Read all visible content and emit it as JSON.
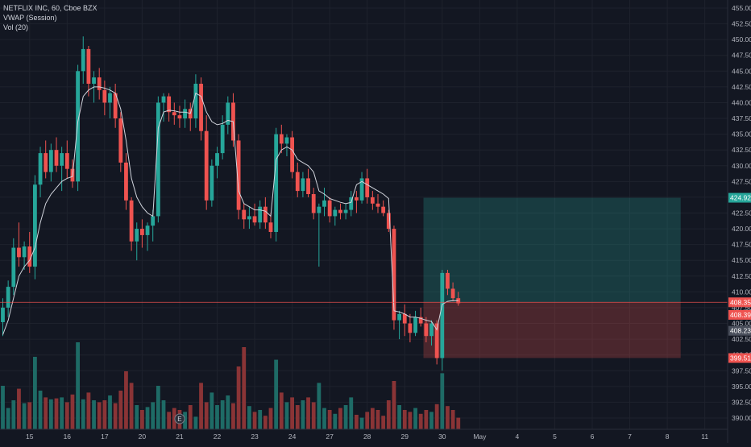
{
  "symbol": {
    "title": "NETFLIX INC, 60, Cboe BZX",
    "indicator_vwap": "VWAP (Session)",
    "indicator_vol": "Vol (20)"
  },
  "colors": {
    "background": "#131722",
    "grid": "#1e222d",
    "up": "#26a69a",
    "down": "#ef5350",
    "vol_up": "#1e6b66",
    "vol_down": "#8a3436",
    "vwap": "#d1d4dc",
    "target_zone": "rgba(38,166,154,0.25)",
    "stop_zone": "rgba(239,83,80,0.25)",
    "axis_text": "#b2b5be"
  },
  "earnings_marker": "E",
  "price_labels": {
    "target": "424.92",
    "entry": "408.35",
    "last_red": "408.39",
    "current": "408.23",
    "stop": "399.51"
  },
  "chart_data": {
    "type": "candlestick",
    "title": "NETFLIX INC, 60, Cboe BZX",
    "y_ticks": [
      "455.00",
      "452.50",
      "450.00",
      "447.50",
      "445.00",
      "442.50",
      "440.00",
      "437.50",
      "435.00",
      "432.50",
      "430.00",
      "427.50",
      "425.00",
      "422.50",
      "420.00",
      "417.50",
      "415.00",
      "412.50",
      "410.00",
      "407.50",
      "405.00",
      "402.50",
      "400.00",
      "397.50",
      "395.00",
      "392.50",
      "390.00"
    ],
    "ylim": [
      388.5,
      456.0
    ],
    "x_tick_labels": [
      {
        "label": "15",
        "slot": 5
      },
      {
        "label": "16",
        "slot": 12
      },
      {
        "label": "17",
        "slot": 19
      },
      {
        "label": "20",
        "slot": 26
      },
      {
        "label": "21",
        "slot": 33
      },
      {
        "label": "22",
        "slot": 40
      },
      {
        "label": "23",
        "slot": 47
      },
      {
        "label": "24",
        "slot": 54
      },
      {
        "label": "27",
        "slot": 61
      },
      {
        "label": "28",
        "slot": 68
      },
      {
        "label": "29",
        "slot": 75
      },
      {
        "label": "30",
        "slot": 82
      },
      {
        "label": "May",
        "slot": 89
      },
      {
        "label": "4",
        "slot": 96
      },
      {
        "label": "5",
        "slot": 103
      },
      {
        "label": "6",
        "slot": 110
      },
      {
        "label": "7",
        "slot": 117
      },
      {
        "label": "8",
        "slot": 124
      },
      {
        "label": "11",
        "slot": 131
      }
    ],
    "candles": [
      [
        405.2,
        409.0,
        403.0,
        407.5
      ],
      [
        407.5,
        411.8,
        406.0,
        410.8
      ],
      [
        410.8,
        418.5,
        409.5,
        417.0
      ],
      [
        417.0,
        421.0,
        414.0,
        415.5
      ],
      [
        415.5,
        418.0,
        413.5,
        417.2
      ],
      [
        417.2,
        419.5,
        413.0,
        414.0
      ],
      [
        414.0,
        428.5,
        412.0,
        427.0
      ],
      [
        427.0,
        433.0,
        425.0,
        432.0
      ],
      [
        432.0,
        434.0,
        428.0,
        429.0
      ],
      [
        429.0,
        433.5,
        427.5,
        432.5
      ],
      [
        432.5,
        434.5,
        429.0,
        430.0
      ],
      [
        430.0,
        433.0,
        426.0,
        432.0
      ],
      [
        432.0,
        434.0,
        428.0,
        429.5
      ],
      [
        429.5,
        431.0,
        426.5,
        427.5
      ],
      [
        427.5,
        446.0,
        426.0,
        445.0
      ],
      [
        445.0,
        450.5,
        443.0,
        448.5
      ],
      [
        448.5,
        449.0,
        441.0,
        443.0
      ],
      [
        443.0,
        445.0,
        440.0,
        444.0
      ],
      [
        444.0,
        445.5,
        440.5,
        442.0
      ],
      [
        442.0,
        443.5,
        438.0,
        440.0
      ],
      [
        440.0,
        442.5,
        437.5,
        441.5
      ],
      [
        441.5,
        443.0,
        436.0,
        437.5
      ],
      [
        437.5,
        438.5,
        429.0,
        430.5
      ],
      [
        430.5,
        432.0,
        423.0,
        424.5
      ],
      [
        424.5,
        425.0,
        416.5,
        418.0
      ],
      [
        418.0,
        421.0,
        415.0,
        420.0
      ],
      [
        420.0,
        421.5,
        417.0,
        419.0
      ],
      [
        419.0,
        421.0,
        416.5,
        420.5
      ],
      [
        420.5,
        423.0,
        418.0,
        422.0
      ],
      [
        422.0,
        441.0,
        421.0,
        440.0
      ],
      [
        440.0,
        441.5,
        437.0,
        441.0
      ],
      [
        441.0,
        441.5,
        437.0,
        438.5
      ],
      [
        438.5,
        440.0,
        436.5,
        438.0
      ],
      [
        438.0,
        439.5,
        436.0,
        437.5
      ],
      [
        437.5,
        440.5,
        436.0,
        439.0
      ],
      [
        439.0,
        440.0,
        435.5,
        437.5
      ],
      [
        437.5,
        444.5,
        436.0,
        443.0
      ],
      [
        443.0,
        444.0,
        434.0,
        435.5
      ],
      [
        435.5,
        438.0,
        423.0,
        424.5
      ],
      [
        424.5,
        431.0,
        423.5,
        430.0
      ],
      [
        430.0,
        433.0,
        428.0,
        432.0
      ],
      [
        432.0,
        438.0,
        431.0,
        436.5
      ],
      [
        436.5,
        441.0,
        435.0,
        440.0
      ],
      [
        440.0,
        441.5,
        433.0,
        434.0
      ],
      [
        434.0,
        435.0,
        421.5,
        423.0
      ],
      [
        423.0,
        424.0,
        420.0,
        421.5
      ],
      [
        421.5,
        423.5,
        420.0,
        422.0
      ],
      [
        422.0,
        424.0,
        420.5,
        421.0
      ],
      [
        421.0,
        424.5,
        420.0,
        423.5
      ],
      [
        423.5,
        425.0,
        420.0,
        421.0
      ],
      [
        421.0,
        422.5,
        418.5,
        419.5
      ],
      [
        419.5,
        436.0,
        418.0,
        435.0
      ],
      [
        435.0,
        436.5,
        432.0,
        433.5
      ],
      [
        433.5,
        435.0,
        431.5,
        434.5
      ],
      [
        434.5,
        435.5,
        428.0,
        429.0
      ],
      [
        429.0,
        430.5,
        425.0,
        426.0
      ],
      [
        426.0,
        429.0,
        425.0,
        428.0
      ],
      [
        428.0,
        429.5,
        425.0,
        425.5
      ],
      [
        425.5,
        426.5,
        421.5,
        422.5
      ],
      [
        422.5,
        424.0,
        414.0,
        423.5
      ],
      [
        423.5,
        426.5,
        422.0,
        424.5
      ],
      [
        424.5,
        425.0,
        421.0,
        422.0
      ],
      [
        422.0,
        423.5,
        420.5,
        423.0
      ],
      [
        423.0,
        424.0,
        421.5,
        422.5
      ],
      [
        422.5,
        424.0,
        421.5,
        423.0
      ],
      [
        423.0,
        426.0,
        422.0,
        425.0
      ],
      [
        425.0,
        426.0,
        422.5,
        424.5
      ],
      [
        424.5,
        429.0,
        424.0,
        428.0
      ],
      [
        428.0,
        429.5,
        424.0,
        425.0
      ],
      [
        425.0,
        426.0,
        423.0,
        424.0
      ],
      [
        424.0,
        425.5,
        422.5,
        423.5
      ],
      [
        423.5,
        424.5,
        422.0,
        422.5
      ],
      [
        422.5,
        423.0,
        419.5,
        420.0
      ],
      [
        420.0,
        420.5,
        404.0,
        405.5
      ],
      [
        405.5,
        407.0,
        402.5,
        406.5
      ],
      [
        406.5,
        408.0,
        403.0,
        405.0
      ],
      [
        405.0,
        406.5,
        402.0,
        403.5
      ],
      [
        403.5,
        407.0,
        403.0,
        406.0
      ],
      [
        406.0,
        407.5,
        404.5,
        405.0
      ],
      [
        405.0,
        406.0,
        402.0,
        403.0
      ],
      [
        403.0,
        405.5,
        401.5,
        405.0
      ],
      [
        405.0,
        405.5,
        398.5,
        399.5
      ],
      [
        399.5,
        413.5,
        397.5,
        413.0
      ],
      [
        413.0,
        413.5,
        409.5,
        410.5
      ],
      [
        410.5,
        411.5,
        408.5,
        409.0
      ],
      [
        409.0,
        410.0,
        407.8,
        408.2
      ]
    ],
    "vwap": [
      403.2,
      405.5,
      409.0,
      412.5,
      414.0,
      415.0,
      417.0,
      421.0,
      424.0,
      425.5,
      426.5,
      427.5,
      428.0,
      428.3,
      437.0,
      441.0,
      442.0,
      442.5,
      442.5,
      442.3,
      442.0,
      441.5,
      439.0,
      434.0,
      428.0,
      425.0,
      423.5,
      422.5,
      422.0,
      436.0,
      438.5,
      438.8,
      438.7,
      438.5,
      438.5,
      438.3,
      441.5,
      441.0,
      438.5,
      437.0,
      436.5,
      436.7,
      437.2,
      437.0,
      426.0,
      424.0,
      423.5,
      423.0,
      423.0,
      422.8,
      422.0,
      431.0,
      432.5,
      433.0,
      432.5,
      431.0,
      430.5,
      430.0,
      429.0,
      426.0,
      425.5,
      424.8,
      424.5,
      424.2,
      424.0,
      424.2,
      427.0,
      427.5,
      427.0,
      426.5,
      426.0,
      425.5,
      424.8,
      407.0,
      406.8,
      406.5,
      406.0,
      406.0,
      405.8,
      405.5,
      405.3,
      404.0,
      408.0,
      408.5,
      408.6,
      408.6
    ],
    "volumes": [
      0.45,
      0.22,
      0.3,
      0.42,
      0.27,
      0.28,
      0.75,
      0.4,
      0.33,
      0.31,
      0.32,
      0.33,
      0.28,
      0.36,
      0.9,
      0.31,
      0.38,
      0.3,
      0.28,
      0.3,
      0.35,
      0.27,
      0.4,
      0.6,
      0.48,
      0.25,
      0.2,
      0.23,
      0.28,
      0.45,
      0.3,
      0.18,
      0.22,
      0.2,
      0.18,
      0.25,
      0.13,
      0.48,
      0.28,
      0.38,
      0.25,
      0.3,
      0.35,
      0.27,
      0.65,
      0.85,
      0.24,
      0.18,
      0.2,
      0.14,
      0.22,
      0.72,
      0.38,
      0.28,
      0.33,
      0.25,
      0.3,
      0.33,
      0.28,
      0.48,
      0.22,
      0.2,
      0.16,
      0.22,
      0.25,
      0.33,
      0.15,
      0.12,
      0.18,
      0.22,
      0.2,
      0.14,
      0.3,
      0.5,
      0.25,
      0.2,
      0.18,
      0.22,
      0.16,
      0.2,
      0.18,
      0.26,
      0.58,
      0.24,
      0.2,
      0.12
    ],
    "position": {
      "entry": 408.35,
      "target": 424.92,
      "stop": 399.51,
      "start_slot": 78.5,
      "end_slot": 126.5
    },
    "current_price": 408.23,
    "earnings_slot": 33
  }
}
